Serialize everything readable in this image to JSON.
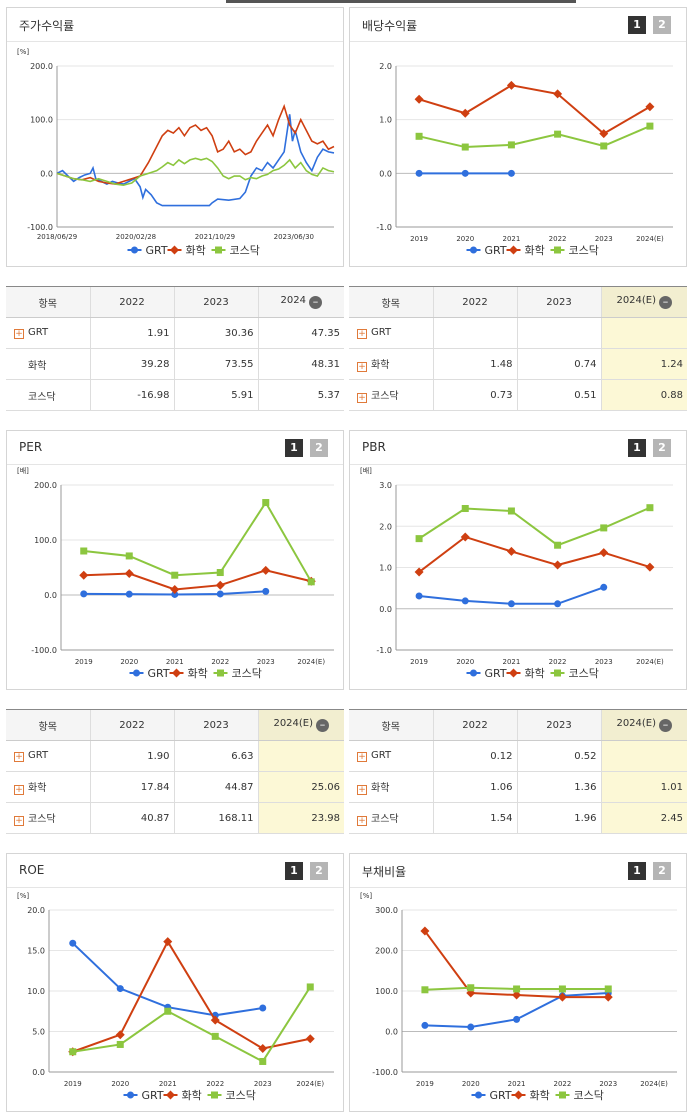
{
  "colors": {
    "grt": "#2f6fdd",
    "chem": "#cf3f11",
    "kosdaq": "#8cc63f",
    "estimate_bg": "#fcf8d6"
  },
  "legend": [
    "GRT",
    "화학",
    "코스닥"
  ],
  "panels": {
    "stock_return": {
      "title": "주가수익률",
      "unit": "[%]"
    },
    "dividend": {
      "title": "배당수익률",
      "buttons": [
        "1",
        "2"
      ]
    },
    "per": {
      "title": "PER",
      "unit": "[배]",
      "buttons": [
        "1",
        "2"
      ]
    },
    "pbr": {
      "title": "PBR",
      "unit": "[배]",
      "buttons": [
        "1",
        "2"
      ]
    },
    "roe": {
      "title": "ROE",
      "unit": "[%]",
      "buttons": [
        "1",
        "2"
      ]
    },
    "debt": {
      "title": "부채비율",
      "unit": "[%]",
      "buttons": [
        "1",
        "2"
      ]
    }
  },
  "tables": {
    "stock_return": {
      "headers": [
        "항목",
        "2022",
        "2023",
        "2024"
      ],
      "rows": [
        {
          "name": "GRT",
          "plus": true,
          "values": [
            "1.91",
            "30.36",
            "47.35"
          ]
        },
        {
          "name": "화학",
          "plus": false,
          "values": [
            "39.28",
            "73.55",
            "48.31"
          ]
        },
        {
          "name": "코스닥",
          "plus": false,
          "values": [
            "-16.98",
            "5.91",
            "5.37"
          ]
        }
      ]
    },
    "dividend": {
      "headers": [
        "항목",
        "2022",
        "2023",
        "2024(E)"
      ],
      "rows": [
        {
          "name": "GRT",
          "plus": true,
          "values": [
            "",
            "",
            ""
          ]
        },
        {
          "name": "화학",
          "plus": true,
          "values": [
            "1.48",
            "0.74",
            "1.24"
          ]
        },
        {
          "name": "코스닥",
          "plus": true,
          "values": [
            "0.73",
            "0.51",
            "0.88"
          ]
        }
      ]
    },
    "per": {
      "headers": [
        "항목",
        "2022",
        "2023",
        "2024(E)"
      ],
      "rows": [
        {
          "name": "GRT",
          "plus": true,
          "values": [
            "1.90",
            "6.63",
            ""
          ]
        },
        {
          "name": "화학",
          "plus": true,
          "values": [
            "17.84",
            "44.87",
            "25.06"
          ]
        },
        {
          "name": "코스닥",
          "plus": true,
          "values": [
            "40.87",
            "168.11",
            "23.98"
          ]
        }
      ]
    },
    "pbr": {
      "headers": [
        "항목",
        "2022",
        "2023",
        "2024(E)"
      ],
      "rows": [
        {
          "name": "GRT",
          "plus": true,
          "values": [
            "0.12",
            "0.52",
            ""
          ]
        },
        {
          "name": "화학",
          "plus": true,
          "values": [
            "1.06",
            "1.36",
            "1.01"
          ]
        },
        {
          "name": "코스닥",
          "plus": true,
          "values": [
            "1.54",
            "1.96",
            "2.45"
          ]
        }
      ]
    }
  },
  "chart_data": [
    {
      "id": "stock_return",
      "type": "line",
      "title": "주가수익률",
      "ylabel": "[%]",
      "ylim": [
        -100,
        200
      ],
      "yticks": [
        -100,
        0,
        100,
        200
      ],
      "ytick_labels": [
        "-100.0",
        "0.0",
        "100.0",
        "200.0"
      ],
      "xtick_labels": [
        "2018/06/29",
        "2020/02/28",
        "2021/10/29",
        "2023/06/30"
      ],
      "xlim": [
        0,
        100
      ],
      "xticks": [
        0,
        28.5,
        57,
        85.5
      ],
      "series": [
        {
          "name": "GRT",
          "points": [
            [
              0,
              0
            ],
            [
              2,
              5
            ],
            [
              4,
              -5
            ],
            [
              6,
              -15
            ],
            [
              8,
              -8
            ],
            [
              10,
              -3
            ],
            [
              12,
              0
            ],
            [
              13,
              10
            ],
            [
              14,
              -10
            ],
            [
              16,
              -15
            ],
            [
              18,
              -20
            ],
            [
              20,
              -15
            ],
            [
              22,
              -18
            ],
            [
              24,
              -20
            ],
            [
              26,
              -15
            ],
            [
              28,
              -10
            ],
            [
              30,
              -25
            ],
            [
              31,
              -45
            ],
            [
              32,
              -30
            ],
            [
              34,
              -40
            ],
            [
              36,
              -55
            ],
            [
              38,
              -60
            ],
            [
              45,
              -60
            ],
            [
              50,
              -60
            ],
            [
              55,
              -60
            ],
            [
              56,
              -55
            ],
            [
              58,
              -48
            ],
            [
              62,
              -50
            ],
            [
              66,
              -47
            ],
            [
              68,
              -35
            ],
            [
              70,
              -5
            ],
            [
              72,
              10
            ],
            [
              74,
              5
            ],
            [
              76,
              20
            ],
            [
              78,
              10
            ],
            [
              80,
              25
            ],
            [
              82,
              40
            ],
            [
              84,
              110
            ],
            [
              85,
              60
            ],
            [
              86,
              80
            ],
            [
              88,
              40
            ],
            [
              90,
              20
            ],
            [
              92,
              5
            ],
            [
              94,
              30
            ],
            [
              96,
              45
            ],
            [
              98,
              40
            ],
            [
              100,
              38
            ]
          ]
        },
        {
          "name": "화학",
          "points": [
            [
              0,
              0
            ],
            [
              3,
              -5
            ],
            [
              6,
              -10
            ],
            [
              9,
              -12
            ],
            [
              12,
              -8
            ],
            [
              15,
              -15
            ],
            [
              18,
              -18
            ],
            [
              21,
              -20
            ],
            [
              24,
              -15
            ],
            [
              27,
              -10
            ],
            [
              30,
              -5
            ],
            [
              33,
              20
            ],
            [
              36,
              50
            ],
            [
              38,
              70
            ],
            [
              40,
              80
            ],
            [
              42,
              75
            ],
            [
              44,
              85
            ],
            [
              46,
              70
            ],
            [
              48,
              85
            ],
            [
              50,
              90
            ],
            [
              52,
              80
            ],
            [
              54,
              85
            ],
            [
              56,
              70
            ],
            [
              58,
              40
            ],
            [
              60,
              45
            ],
            [
              62,
              60
            ],
            [
              64,
              40
            ],
            [
              66,
              45
            ],
            [
              68,
              35
            ],
            [
              70,
              40
            ],
            [
              72,
              60
            ],
            [
              74,
              75
            ],
            [
              76,
              90
            ],
            [
              78,
              70
            ],
            [
              80,
              100
            ],
            [
              82,
              125
            ],
            [
              84,
              90
            ],
            [
              86,
              75
            ],
            [
              88,
              100
            ],
            [
              90,
              80
            ],
            [
              92,
              60
            ],
            [
              94,
              55
            ],
            [
              96,
              60
            ],
            [
              98,
              45
            ],
            [
              100,
              50
            ]
          ]
        },
        {
          "name": "코스닥",
          "points": [
            [
              0,
              0
            ],
            [
              3,
              -5
            ],
            [
              6,
              -10
            ],
            [
              9,
              -12
            ],
            [
              12,
              -15
            ],
            [
              15,
              -10
            ],
            [
              18,
              -15
            ],
            [
              21,
              -20
            ],
            [
              24,
              -22
            ],
            [
              27,
              -18
            ],
            [
              30,
              -5
            ],
            [
              33,
              0
            ],
            [
              36,
              5
            ],
            [
              38,
              12
            ],
            [
              40,
              20
            ],
            [
              42,
              15
            ],
            [
              44,
              25
            ],
            [
              46,
              18
            ],
            [
              48,
              25
            ],
            [
              50,
              28
            ],
            [
              52,
              25
            ],
            [
              54,
              28
            ],
            [
              56,
              22
            ],
            [
              58,
              10
            ],
            [
              60,
              -5
            ],
            [
              62,
              -10
            ],
            [
              64,
              -5
            ],
            [
              66,
              -5
            ],
            [
              68,
              -12
            ],
            [
              70,
              -8
            ],
            [
              72,
              -10
            ],
            [
              74,
              -5
            ],
            [
              76,
              -2
            ],
            [
              78,
              5
            ],
            [
              80,
              8
            ],
            [
              82,
              15
            ],
            [
              84,
              25
            ],
            [
              86,
              10
            ],
            [
              88,
              20
            ],
            [
              90,
              5
            ],
            [
              92,
              -2
            ],
            [
              94,
              -5
            ],
            [
              96,
              10
            ],
            [
              98,
              5
            ],
            [
              100,
              3
            ]
          ]
        }
      ]
    },
    {
      "id": "dividend",
      "type": "line",
      "title": "배당수익률",
      "ylim": [
        -1,
        2
      ],
      "yticks": [
        -1,
        0,
        1,
        2
      ],
      "ytick_labels": [
        "-1.0",
        "0.0",
        "1.0",
        "2.0"
      ],
      "categories": [
        "2019",
        "2020",
        "2021",
        "2022",
        "2023",
        "2024(E)"
      ],
      "series": [
        {
          "name": "GRT",
          "values": [
            0,
            0,
            0,
            null,
            null,
            null
          ]
        },
        {
          "name": "화학",
          "values": [
            1.38,
            1.12,
            1.64,
            1.48,
            0.74,
            1.24
          ]
        },
        {
          "name": "코스닥",
          "values": [
            0.69,
            0.49,
            0.53,
            0.73,
            0.51,
            0.88
          ]
        }
      ]
    },
    {
      "id": "per",
      "type": "line",
      "title": "PER",
      "ylabel": "[배]",
      "ylim": [
        -100,
        200
      ],
      "yticks": [
        -100,
        0,
        100,
        200
      ],
      "ytick_labels": [
        "-100.0",
        "0.0",
        "100.0",
        "200.0"
      ],
      "categories": [
        "2019",
        "2020",
        "2021",
        "2022",
        "2023",
        "2024(E)"
      ],
      "series": [
        {
          "name": "GRT",
          "values": [
            2,
            1.5,
            1,
            1.9,
            6.63,
            null
          ]
        },
        {
          "name": "화학",
          "values": [
            36,
            39,
            10,
            17.84,
            44.87,
            25.06
          ]
        },
        {
          "name": "코스닥",
          "values": [
            80,
            71,
            36,
            40.87,
            168.11,
            23.98
          ]
        }
      ]
    },
    {
      "id": "pbr",
      "type": "line",
      "title": "PBR",
      "ylabel": "[배]",
      "ylim": [
        -1,
        3
      ],
      "yticks": [
        -1,
        0,
        1,
        2,
        3
      ],
      "ytick_labels": [
        "-1.0",
        "0.0",
        "1.0",
        "2.0",
        "3.0"
      ],
      "categories": [
        "2019",
        "2020",
        "2021",
        "2022",
        "2023",
        "2024(E)"
      ],
      "series": [
        {
          "name": "GRT",
          "values": [
            0.31,
            0.19,
            0.12,
            0.12,
            0.52,
            null
          ]
        },
        {
          "name": "화학",
          "values": [
            0.89,
            1.74,
            1.39,
            1.06,
            1.36,
            1.01
          ]
        },
        {
          "name": "코스닥",
          "values": [
            1.7,
            2.43,
            2.37,
            1.54,
            1.96,
            2.45
          ]
        }
      ]
    },
    {
      "id": "roe",
      "type": "line",
      "title": "ROE",
      "ylabel": "[%]",
      "ylim": [
        0,
        20
      ],
      "yticks": [
        0,
        5,
        10,
        15,
        20
      ],
      "ytick_labels": [
        "0.0",
        "5.0",
        "10.0",
        "15.0",
        "20.0"
      ],
      "categories": [
        "2019",
        "2020",
        "2021",
        "2022",
        "2023",
        "2024(E)"
      ],
      "series": [
        {
          "name": "GRT",
          "values": [
            15.9,
            10.3,
            8.0,
            7.0,
            7.9,
            null
          ]
        },
        {
          "name": "화학",
          "values": [
            2.5,
            4.6,
            16.1,
            6.4,
            2.9,
            4.1
          ]
        },
        {
          "name": "코스닥",
          "values": [
            2.5,
            3.4,
            7.5,
            4.4,
            1.3,
            10.5
          ]
        }
      ]
    },
    {
      "id": "debt",
      "type": "line",
      "title": "부채비율",
      "ylabel": "[%]",
      "ylim": [
        -100,
        300
      ],
      "yticks": [
        -100,
        0,
        100,
        200,
        300
      ],
      "ytick_labels": [
        "-100.0",
        "0.0",
        "100.0",
        "200.0",
        "300.0"
      ],
      "categories": [
        "2019",
        "2020",
        "2021",
        "2022",
        "2023",
        "2024(E)"
      ],
      "series": [
        {
          "name": "GRT",
          "values": [
            15,
            11,
            30,
            88,
            95,
            null
          ]
        },
        {
          "name": "화학",
          "values": [
            248,
            95,
            90,
            85,
            85,
            null
          ]
        },
        {
          "name": "코스닥",
          "values": [
            103,
            108,
            105,
            105,
            105,
            null
          ]
        }
      ]
    }
  ]
}
